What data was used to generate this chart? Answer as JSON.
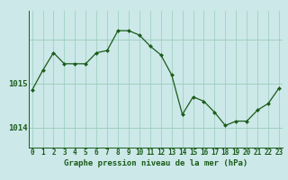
{
  "x": [
    0,
    1,
    2,
    3,
    4,
    5,
    6,
    7,
    8,
    9,
    10,
    11,
    12,
    13,
    14,
    15,
    16,
    17,
    18,
    19,
    20,
    21,
    22,
    23
  ],
  "y": [
    1014.85,
    1015.3,
    1015.7,
    1015.45,
    1015.45,
    1015.45,
    1015.7,
    1015.75,
    1016.2,
    1016.2,
    1016.1,
    1015.85,
    1015.65,
    1015.2,
    1014.3,
    1014.7,
    1014.6,
    1014.35,
    1014.05,
    1014.15,
    1014.15,
    1014.4,
    1014.55,
    1014.9
  ],
  "xlabel": "Graphe pression niveau de la mer (hPa)",
  "yticks": [
    1014,
    1015
  ],
  "ylim": [
    1013.55,
    1016.65
  ],
  "xlim": [
    -0.3,
    23.3
  ],
  "bg_color": "#cce8e8",
  "plot_bg_color": "#cce8e8",
  "line_color": "#1a5c1a",
  "marker_color": "#1a5c1a",
  "grid_color": "#99ccbb",
  "xlabel_fontsize": 6.5,
  "ytick_fontsize": 6.5,
  "xtick_fontsize": 5.5
}
